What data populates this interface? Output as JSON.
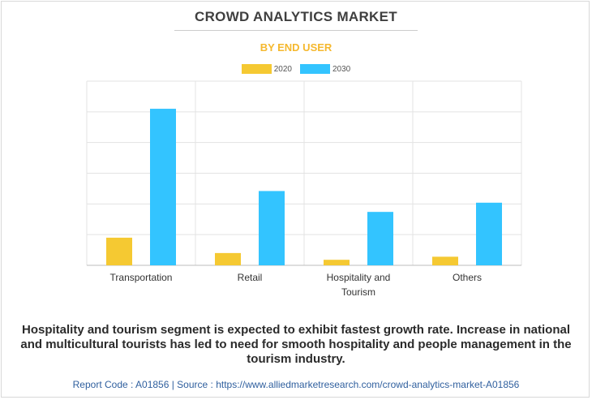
{
  "chart_data": {
    "type": "bar",
    "title": "CROWD ANALYTICS MARKET",
    "subtitle": "BY END USER",
    "categories": [
      "Transportation",
      "Retail",
      "Hospitality and Tourism",
      "Others"
    ],
    "category_lines": [
      [
        "Transportation"
      ],
      [
        "Retail"
      ],
      [
        "Hospitality and",
        "Tourism"
      ],
      [
        "Others"
      ]
    ],
    "series": [
      {
        "name": "2020",
        "color": "#f5c932",
        "values": [
          0.9,
          0.4,
          0.18,
          0.28
        ]
      },
      {
        "name": "2030",
        "color": "#33c4ff",
        "values": [
          5.1,
          2.42,
          1.74,
          2.04
        ]
      }
    ],
    "ylim": [
      0,
      6
    ],
    "y_gridlines": [
      1,
      2,
      3,
      4,
      5,
      6
    ],
    "legend_position": "top-center",
    "grid": true
  },
  "caption": "Hospitality and tourism segment is expected to exhibit fastest growth rate. Increase in national and multicultural tourists has led to need for smooth hospitality and people management in the tourism industry.",
  "footer": "Report Code : A01856  |  Source : https://www.alliedmarketresearch.com/crowd-analytics-market-A01856"
}
